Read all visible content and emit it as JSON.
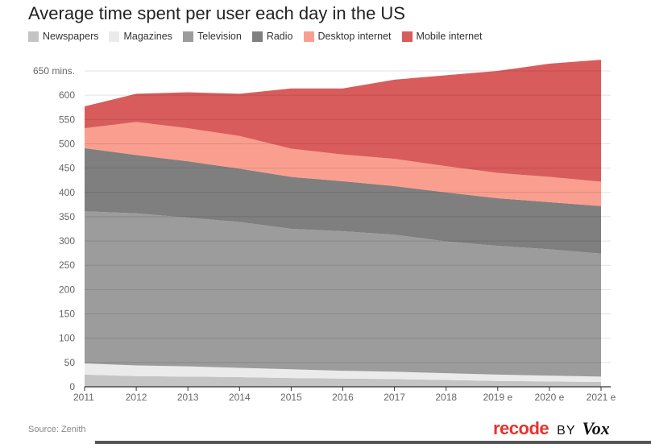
{
  "page": {
    "title": "Average time spent per user each day in the US",
    "source": "Source: Zenith",
    "brand": {
      "recode": "recode",
      "by": "BY",
      "vox": "Vox"
    }
  },
  "chart_data": {
    "type": "area",
    "stacked": true,
    "title": "Average time spent per user each day in the US",
    "xlabel": "",
    "ylabel": "",
    "x": [
      "2011",
      "2012",
      "2013",
      "2014",
      "2015",
      "2016",
      "2017",
      "2018",
      "2019 e",
      "2020 e",
      "2021 e"
    ],
    "ylim": [
      0,
      650
    ],
    "yticks": [
      0,
      50,
      100,
      150,
      200,
      250,
      300,
      350,
      400,
      450,
      500,
      550,
      600,
      650
    ],
    "ytick_labels": [
      "0",
      "50",
      "100",
      "150",
      "200",
      "250",
      "300",
      "350",
      "400",
      "450",
      "500",
      "550",
      "600",
      "650 mins."
    ],
    "grid": true,
    "legend_position": "top-left",
    "series": [
      {
        "name": "Newspapers",
        "color": "#c4c4c4",
        "values": [
          25,
          22,
          21,
          20,
          18,
          17,
          16,
          14,
          12,
          11,
          10
        ]
      },
      {
        "name": "Magazines",
        "color": "#ebebeb",
        "values": [
          23,
          22,
          21,
          19,
          18,
          16,
          15,
          14,
          13,
          12,
          11
        ]
      },
      {
        "name": "Television",
        "color": "#9c9c9c",
        "values": [
          313,
          313,
          306,
          300,
          289,
          287,
          282,
          271,
          265,
          260,
          253
        ]
      },
      {
        "name": "Radio",
        "color": "#7f7f7f",
        "values": [
          130,
          120,
          116,
          110,
          107,
          103,
          100,
          101,
          98,
          97,
          98
        ]
      },
      {
        "name": "Desktop internet",
        "color": "#fa9f8f",
        "values": [
          41,
          68,
          68,
          67,
          58,
          55,
          56,
          54,
          52,
          52,
          50
        ]
      },
      {
        "name": "Mobile internet",
        "color": "#d95c5c",
        "values": [
          45,
          58,
          74,
          87,
          124,
          136,
          163,
          187,
          210,
          233,
          251
        ]
      }
    ]
  }
}
